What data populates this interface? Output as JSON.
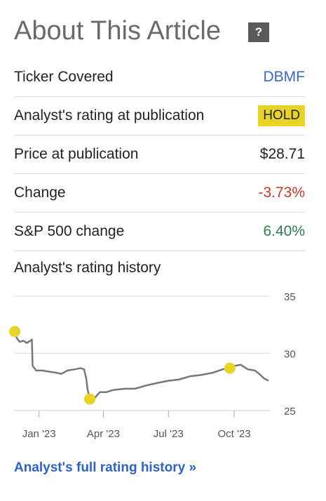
{
  "header": {
    "title": "About This Article",
    "help_icon": "question-icon",
    "help_symbol": "?"
  },
  "rows": [
    {
      "label": "Ticker Covered",
      "value": "DBMF"
    },
    {
      "label": "Analyst's rating at publication",
      "value": "HOLD"
    },
    {
      "label": "Price at publication",
      "value": "$28.71"
    },
    {
      "label": "Change",
      "value": "-3.73%"
    },
    {
      "label": "S&P 500 change",
      "value": "6.40%"
    }
  ],
  "history_title": "Analyst's rating history",
  "full_history_link": "Analyst's full rating history »",
  "colors": {
    "line": "#777777",
    "marker": "#e8d425",
    "link": "#3a68c8",
    "negative": "#c0392b",
    "positive": "#2e7d4f",
    "hold_badge": "#e8d425"
  },
  "chart_data": {
    "type": "line",
    "x_tick_labels": [
      "Jan '23",
      "Apr '23",
      "Jul '23",
      "Oct '23"
    ],
    "x_ticks": [
      "2023-01-01",
      "2023-04-01",
      "2023-07-01",
      "2023-10-01"
    ],
    "xlim": [
      "2022-11-27",
      "2023-11-20"
    ],
    "y_ticks": [
      25,
      30,
      35
    ],
    "ylim": [
      25,
      35
    ],
    "grid": "horizontal",
    "series": [
      {
        "x": [
          "2022-11-28",
          "2022-12-01",
          "2022-12-05",
          "2022-12-10",
          "2022-12-15",
          "2022-12-20",
          "2022-12-22",
          "2022-12-23",
          "2022-12-28",
          "2023-01-05",
          "2023-01-15",
          "2023-01-25",
          "2023-02-01",
          "2023-02-10",
          "2023-02-20",
          "2023-02-28",
          "2023-03-05",
          "2023-03-08",
          "2023-03-10",
          "2023-03-13",
          "2023-03-20",
          "2023-03-27",
          "2023-04-05",
          "2023-04-15",
          "2023-05-01",
          "2023-05-15",
          "2023-06-01",
          "2023-06-15",
          "2023-07-01",
          "2023-07-15",
          "2023-08-01",
          "2023-08-15",
          "2023-09-01",
          "2023-09-15",
          "2023-09-25",
          "2023-10-02",
          "2023-10-10",
          "2023-10-20",
          "2023-10-30",
          "2023-11-05",
          "2023-11-12",
          "2023-11-18"
        ],
        "y": [
          31.9,
          31.3,
          31.0,
          31.1,
          30.9,
          31.1,
          31.2,
          28.9,
          28.5,
          28.5,
          28.4,
          28.3,
          28.2,
          28.5,
          28.6,
          28.7,
          28.6,
          27.8,
          26.8,
          26.0,
          26.1,
          26.6,
          26.6,
          26.8,
          26.9,
          26.9,
          27.2,
          27.4,
          27.6,
          27.7,
          28.0,
          28.1,
          28.3,
          28.6,
          28.7,
          28.9,
          29.0,
          28.6,
          28.5,
          28.2,
          27.8,
          27.6
        ]
      }
    ],
    "rating_markers": [
      {
        "date": "2022-11-28",
        "y": 31.9
      },
      {
        "date": "2023-03-13",
        "y": 26.0
      },
      {
        "date": "2023-09-25",
        "y": 28.7
      }
    ]
  }
}
